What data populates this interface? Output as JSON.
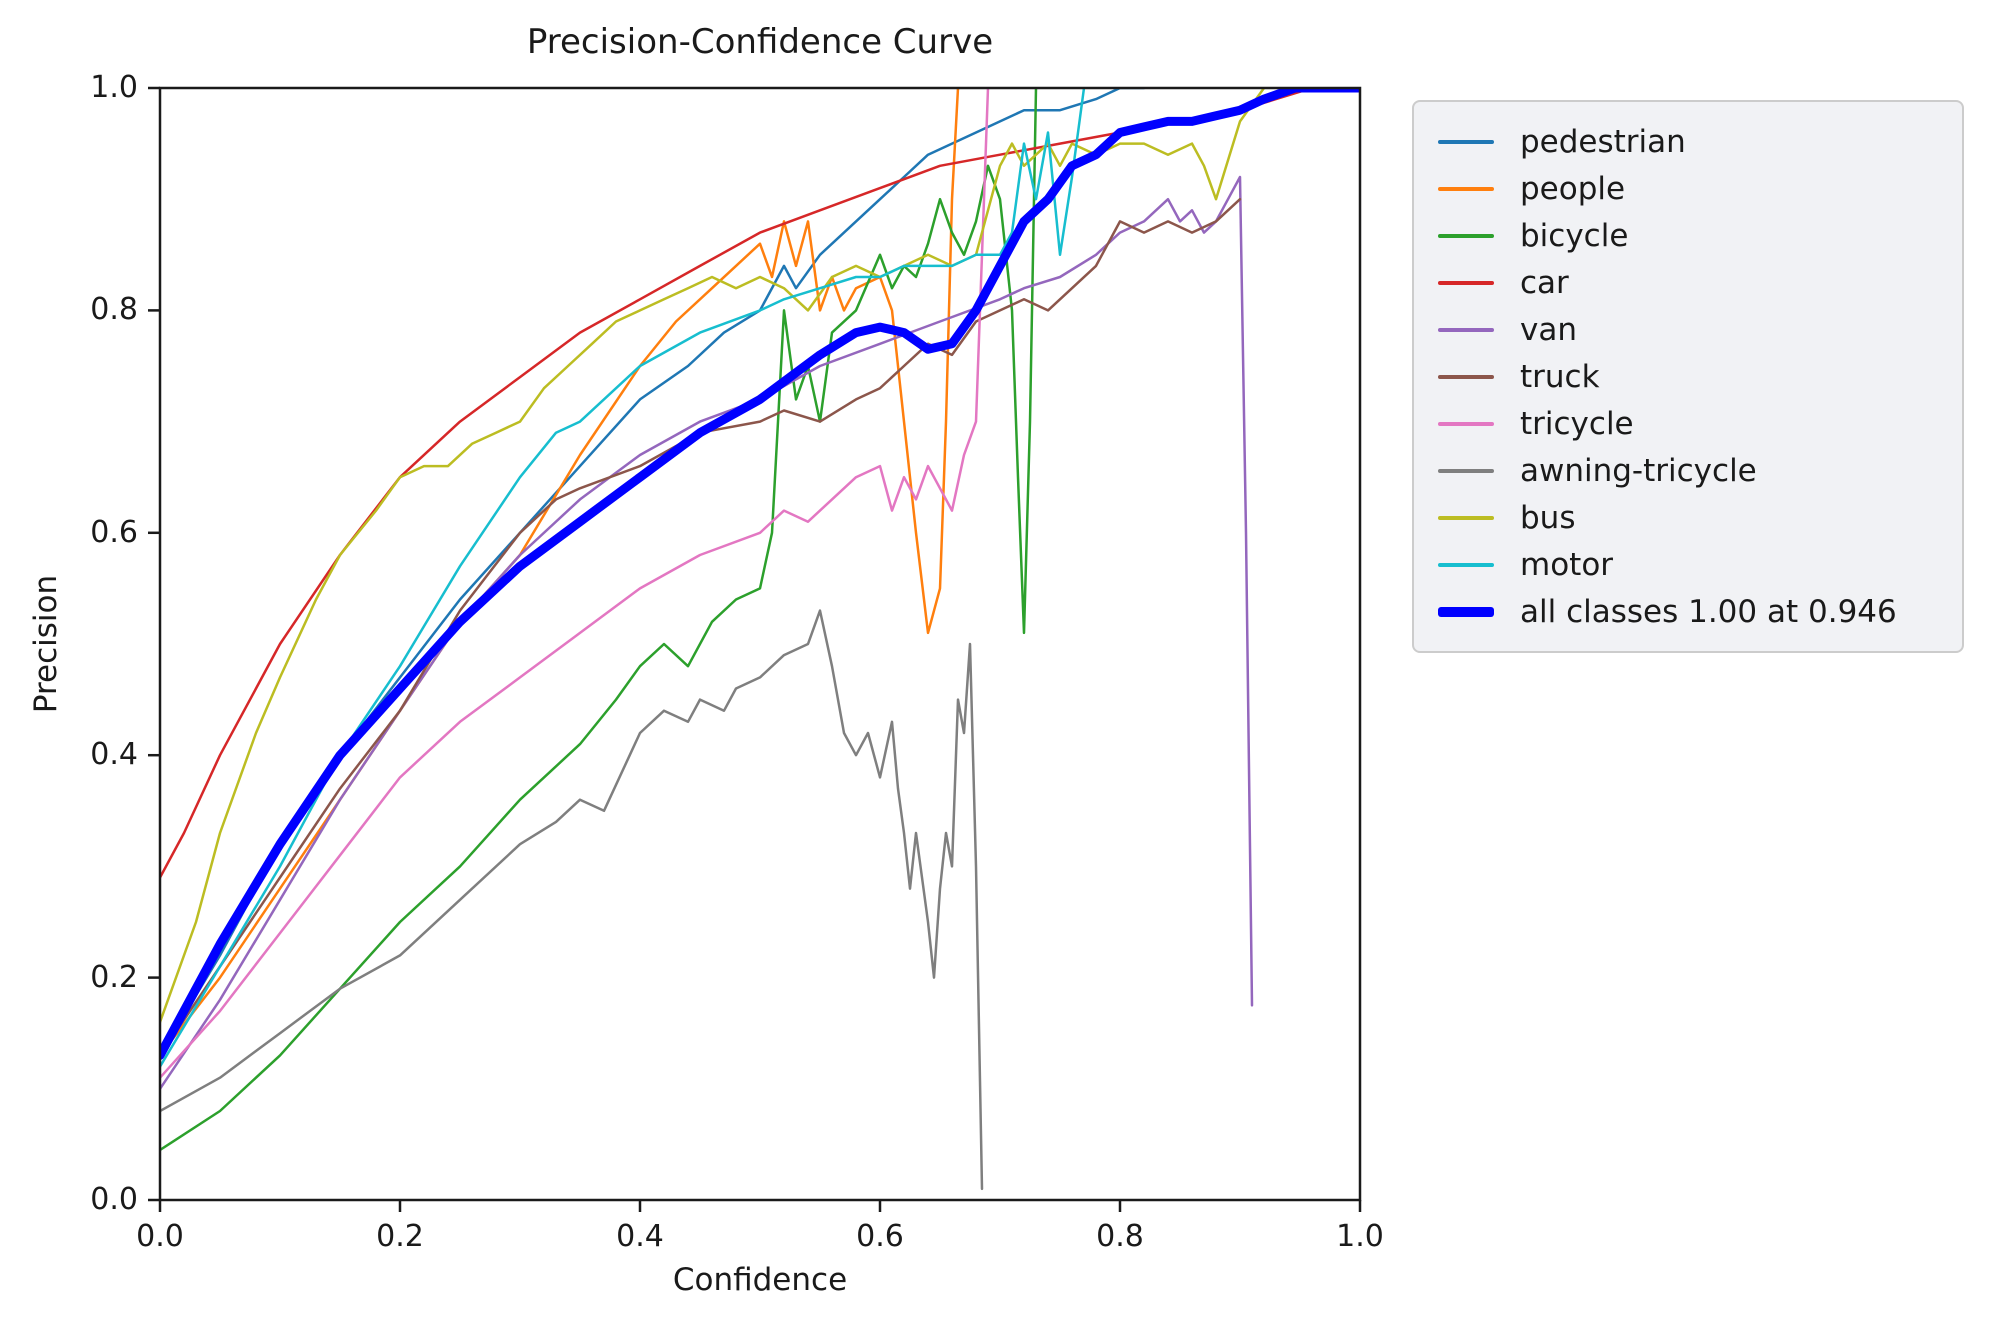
{
  "chart_data": {
    "type": "line",
    "title": "Precision-Confidence Curve",
    "xlabel": "Confidence",
    "ylabel": "Precision",
    "xlim": [
      0.0,
      1.0
    ],
    "ylim": [
      0.0,
      1.0
    ],
    "x_ticks": [
      "0.0",
      "0.2",
      "0.4",
      "0.6",
      "0.8",
      "1.0"
    ],
    "y_ticks": [
      "0.0",
      "0.2",
      "0.4",
      "0.6",
      "0.8",
      "1.0"
    ],
    "grid": false,
    "legend_position": "outside upper right",
    "legend_style": {
      "background": "#f1f2f5",
      "border": "#cccccc"
    },
    "series": [
      {
        "name": "pedestrian",
        "color": "#1f77b4",
        "line_width": 2.5,
        "x": [
          0,
          0.05,
          0.1,
          0.15,
          0.2,
          0.25,
          0.3,
          0.35,
          0.4,
          0.44,
          0.47,
          0.5,
          0.52,
          0.53,
          0.55,
          0.57,
          0.6,
          0.62,
          0.64,
          0.66,
          0.68,
          0.7,
          0.72,
          0.75,
          0.78,
          0.8,
          0.82
        ],
        "y": [
          0.13,
          0.22,
          0.32,
          0.4,
          0.47,
          0.54,
          0.6,
          0.66,
          0.72,
          0.75,
          0.78,
          0.8,
          0.84,
          0.82,
          0.85,
          0.87,
          0.9,
          0.92,
          0.94,
          0.95,
          0.96,
          0.97,
          0.98,
          0.98,
          0.99,
          1.0,
          1.0
        ]
      },
      {
        "name": "people",
        "color": "#ff7f0e",
        "line_width": 2.5,
        "x": [
          0,
          0.05,
          0.1,
          0.15,
          0.2,
          0.25,
          0.3,
          0.35,
          0.4,
          0.43,
          0.46,
          0.48,
          0.5,
          0.51,
          0.52,
          0.53,
          0.54,
          0.55,
          0.56,
          0.57,
          0.58,
          0.6,
          0.61,
          0.62,
          0.63,
          0.64,
          0.65,
          0.655,
          0.66,
          0.665
        ],
        "y": [
          0.13,
          0.2,
          0.28,
          0.36,
          0.44,
          0.52,
          0.58,
          0.67,
          0.75,
          0.79,
          0.82,
          0.84,
          0.86,
          0.83,
          0.88,
          0.84,
          0.88,
          0.8,
          0.83,
          0.8,
          0.82,
          0.83,
          0.8,
          0.7,
          0.6,
          0.51,
          0.55,
          0.7,
          0.9,
          1.0
        ]
      },
      {
        "name": "bicycle",
        "color": "#2ca02c",
        "line_width": 2.5,
        "x": [
          0,
          0.05,
          0.1,
          0.15,
          0.2,
          0.25,
          0.3,
          0.35,
          0.38,
          0.4,
          0.42,
          0.44,
          0.46,
          0.48,
          0.5,
          0.51,
          0.52,
          0.53,
          0.54,
          0.55,
          0.56,
          0.58,
          0.6,
          0.61,
          0.62,
          0.63,
          0.64,
          0.65,
          0.66,
          0.67,
          0.68,
          0.69,
          0.7,
          0.71,
          0.715,
          0.72,
          0.725,
          0.73
        ],
        "y": [
          0.045,
          0.08,
          0.13,
          0.19,
          0.25,
          0.3,
          0.36,
          0.41,
          0.45,
          0.48,
          0.5,
          0.48,
          0.52,
          0.54,
          0.55,
          0.6,
          0.8,
          0.72,
          0.75,
          0.7,
          0.78,
          0.8,
          0.85,
          0.82,
          0.84,
          0.83,
          0.86,
          0.9,
          0.87,
          0.85,
          0.88,
          0.93,
          0.9,
          0.8,
          0.65,
          0.51,
          0.7,
          1.0
        ]
      },
      {
        "name": "car",
        "color": "#d62728",
        "line_width": 2.5,
        "x": [
          0,
          0.02,
          0.05,
          0.1,
          0.15,
          0.2,
          0.25,
          0.3,
          0.35,
          0.4,
          0.45,
          0.5,
          0.55,
          0.6,
          0.65,
          0.7,
          0.75,
          0.8,
          0.85,
          0.9,
          0.93,
          0.96,
          1.0
        ],
        "y": [
          0.29,
          0.33,
          0.4,
          0.5,
          0.58,
          0.65,
          0.7,
          0.74,
          0.78,
          0.81,
          0.84,
          0.87,
          0.89,
          0.91,
          0.93,
          0.94,
          0.95,
          0.96,
          0.97,
          0.98,
          0.99,
          1.0,
          1.0
        ]
      },
      {
        "name": "van",
        "color": "#9467bd",
        "line_width": 2.5,
        "x": [
          0,
          0.05,
          0.1,
          0.15,
          0.2,
          0.25,
          0.3,
          0.35,
          0.4,
          0.45,
          0.5,
          0.55,
          0.6,
          0.65,
          0.7,
          0.72,
          0.75,
          0.78,
          0.8,
          0.82,
          0.84,
          0.85,
          0.86,
          0.87,
          0.88,
          0.89,
          0.9,
          0.905,
          0.91
        ],
        "y": [
          0.1,
          0.18,
          0.27,
          0.36,
          0.44,
          0.52,
          0.58,
          0.63,
          0.67,
          0.7,
          0.72,
          0.75,
          0.77,
          0.79,
          0.81,
          0.82,
          0.83,
          0.85,
          0.87,
          0.88,
          0.9,
          0.88,
          0.89,
          0.87,
          0.88,
          0.9,
          0.92,
          0.6,
          0.175
        ]
      },
      {
        "name": "truck",
        "color": "#8c564b",
        "line_width": 2.5,
        "x": [
          0,
          0.05,
          0.1,
          0.15,
          0.2,
          0.25,
          0.3,
          0.33,
          0.35,
          0.4,
          0.45,
          0.5,
          0.52,
          0.55,
          0.58,
          0.6,
          0.62,
          0.64,
          0.66,
          0.68,
          0.7,
          0.72,
          0.74,
          0.76,
          0.78,
          0.8,
          0.82,
          0.84,
          0.86,
          0.88,
          0.9
        ],
        "y": [
          0.13,
          0.21,
          0.29,
          0.37,
          0.44,
          0.53,
          0.6,
          0.63,
          0.64,
          0.66,
          0.69,
          0.7,
          0.71,
          0.7,
          0.72,
          0.73,
          0.75,
          0.77,
          0.76,
          0.79,
          0.8,
          0.81,
          0.8,
          0.82,
          0.84,
          0.88,
          0.87,
          0.88,
          0.87,
          0.88,
          0.9
        ]
      },
      {
        "name": "tricycle",
        "color": "#e377c2",
        "line_width": 2.5,
        "x": [
          0,
          0.05,
          0.1,
          0.15,
          0.2,
          0.25,
          0.3,
          0.35,
          0.4,
          0.45,
          0.5,
          0.52,
          0.54,
          0.56,
          0.58,
          0.6,
          0.61,
          0.62,
          0.63,
          0.64,
          0.65,
          0.66,
          0.67,
          0.68,
          0.685,
          0.69
        ],
        "y": [
          0.11,
          0.17,
          0.24,
          0.31,
          0.38,
          0.43,
          0.47,
          0.51,
          0.55,
          0.58,
          0.6,
          0.62,
          0.61,
          0.63,
          0.65,
          0.66,
          0.62,
          0.65,
          0.63,
          0.66,
          0.64,
          0.62,
          0.67,
          0.7,
          0.85,
          1.0
        ]
      },
      {
        "name": "awning-tricycle",
        "color": "#7f7f7f",
        "line_width": 2.5,
        "x": [
          0,
          0.05,
          0.1,
          0.15,
          0.2,
          0.25,
          0.3,
          0.33,
          0.35,
          0.37,
          0.4,
          0.42,
          0.44,
          0.45,
          0.47,
          0.48,
          0.5,
          0.52,
          0.54,
          0.55,
          0.56,
          0.57,
          0.58,
          0.59,
          0.6,
          0.61,
          0.615,
          0.62,
          0.625,
          0.63,
          0.64,
          0.645,
          0.65,
          0.655,
          0.66,
          0.665,
          0.67,
          0.675,
          0.68,
          0.685
        ],
        "y": [
          0.08,
          0.11,
          0.15,
          0.19,
          0.22,
          0.27,
          0.32,
          0.34,
          0.36,
          0.35,
          0.42,
          0.44,
          0.43,
          0.45,
          0.44,
          0.46,
          0.47,
          0.49,
          0.5,
          0.53,
          0.48,
          0.42,
          0.4,
          0.42,
          0.38,
          0.43,
          0.37,
          0.33,
          0.28,
          0.33,
          0.25,
          0.2,
          0.28,
          0.33,
          0.3,
          0.45,
          0.42,
          0.5,
          0.3,
          0.01
        ]
      },
      {
        "name": "bus",
        "color": "#bcbd22",
        "line_width": 2.5,
        "x": [
          0,
          0.03,
          0.05,
          0.08,
          0.1,
          0.13,
          0.15,
          0.18,
          0.2,
          0.22,
          0.24,
          0.26,
          0.28,
          0.3,
          0.32,
          0.34,
          0.36,
          0.38,
          0.4,
          0.42,
          0.44,
          0.46,
          0.48,
          0.5,
          0.52,
          0.54,
          0.56,
          0.58,
          0.6,
          0.62,
          0.64,
          0.66,
          0.68,
          0.7,
          0.71,
          0.72,
          0.74,
          0.75,
          0.76,
          0.78,
          0.8,
          0.82,
          0.84,
          0.86,
          0.87,
          0.88,
          0.9,
          0.92
        ],
        "y": [
          0.16,
          0.25,
          0.33,
          0.42,
          0.47,
          0.54,
          0.58,
          0.62,
          0.65,
          0.66,
          0.66,
          0.68,
          0.69,
          0.7,
          0.73,
          0.75,
          0.77,
          0.79,
          0.8,
          0.81,
          0.82,
          0.83,
          0.82,
          0.83,
          0.82,
          0.8,
          0.83,
          0.84,
          0.83,
          0.84,
          0.85,
          0.84,
          0.85,
          0.93,
          0.95,
          0.93,
          0.95,
          0.93,
          0.95,
          0.94,
          0.95,
          0.95,
          0.94,
          0.95,
          0.93,
          0.9,
          0.97,
          1.0
        ]
      },
      {
        "name": "motor",
        "color": "#17becf",
        "line_width": 2.5,
        "x": [
          0,
          0.05,
          0.1,
          0.15,
          0.2,
          0.25,
          0.3,
          0.33,
          0.35,
          0.4,
          0.45,
          0.5,
          0.52,
          0.55,
          0.58,
          0.6,
          0.62,
          0.64,
          0.66,
          0.68,
          0.7,
          0.71,
          0.72,
          0.73,
          0.74,
          0.75,
          0.76,
          0.77
        ],
        "y": [
          0.12,
          0.21,
          0.3,
          0.4,
          0.48,
          0.57,
          0.65,
          0.69,
          0.7,
          0.75,
          0.78,
          0.8,
          0.81,
          0.82,
          0.83,
          0.83,
          0.84,
          0.84,
          0.84,
          0.85,
          0.85,
          0.87,
          0.95,
          0.9,
          0.96,
          0.85,
          0.92,
          1.0
        ]
      },
      {
        "name": "all classes 1.00 at 0.946",
        "color": "#0000ff",
        "line_width": 9,
        "x": [
          0,
          0.05,
          0.1,
          0.15,
          0.2,
          0.25,
          0.3,
          0.35,
          0.4,
          0.45,
          0.5,
          0.55,
          0.58,
          0.6,
          0.62,
          0.64,
          0.66,
          0.68,
          0.7,
          0.72,
          0.74,
          0.76,
          0.78,
          0.8,
          0.82,
          0.84,
          0.86,
          0.88,
          0.9,
          0.92,
          0.946,
          1.0
        ],
        "y": [
          0.13,
          0.23,
          0.32,
          0.4,
          0.46,
          0.52,
          0.57,
          0.61,
          0.65,
          0.69,
          0.72,
          0.76,
          0.78,
          0.785,
          0.78,
          0.765,
          0.77,
          0.8,
          0.84,
          0.88,
          0.9,
          0.93,
          0.94,
          0.96,
          0.965,
          0.97,
          0.97,
          0.975,
          0.98,
          0.99,
          1.0,
          1.0
        ]
      }
    ]
  }
}
